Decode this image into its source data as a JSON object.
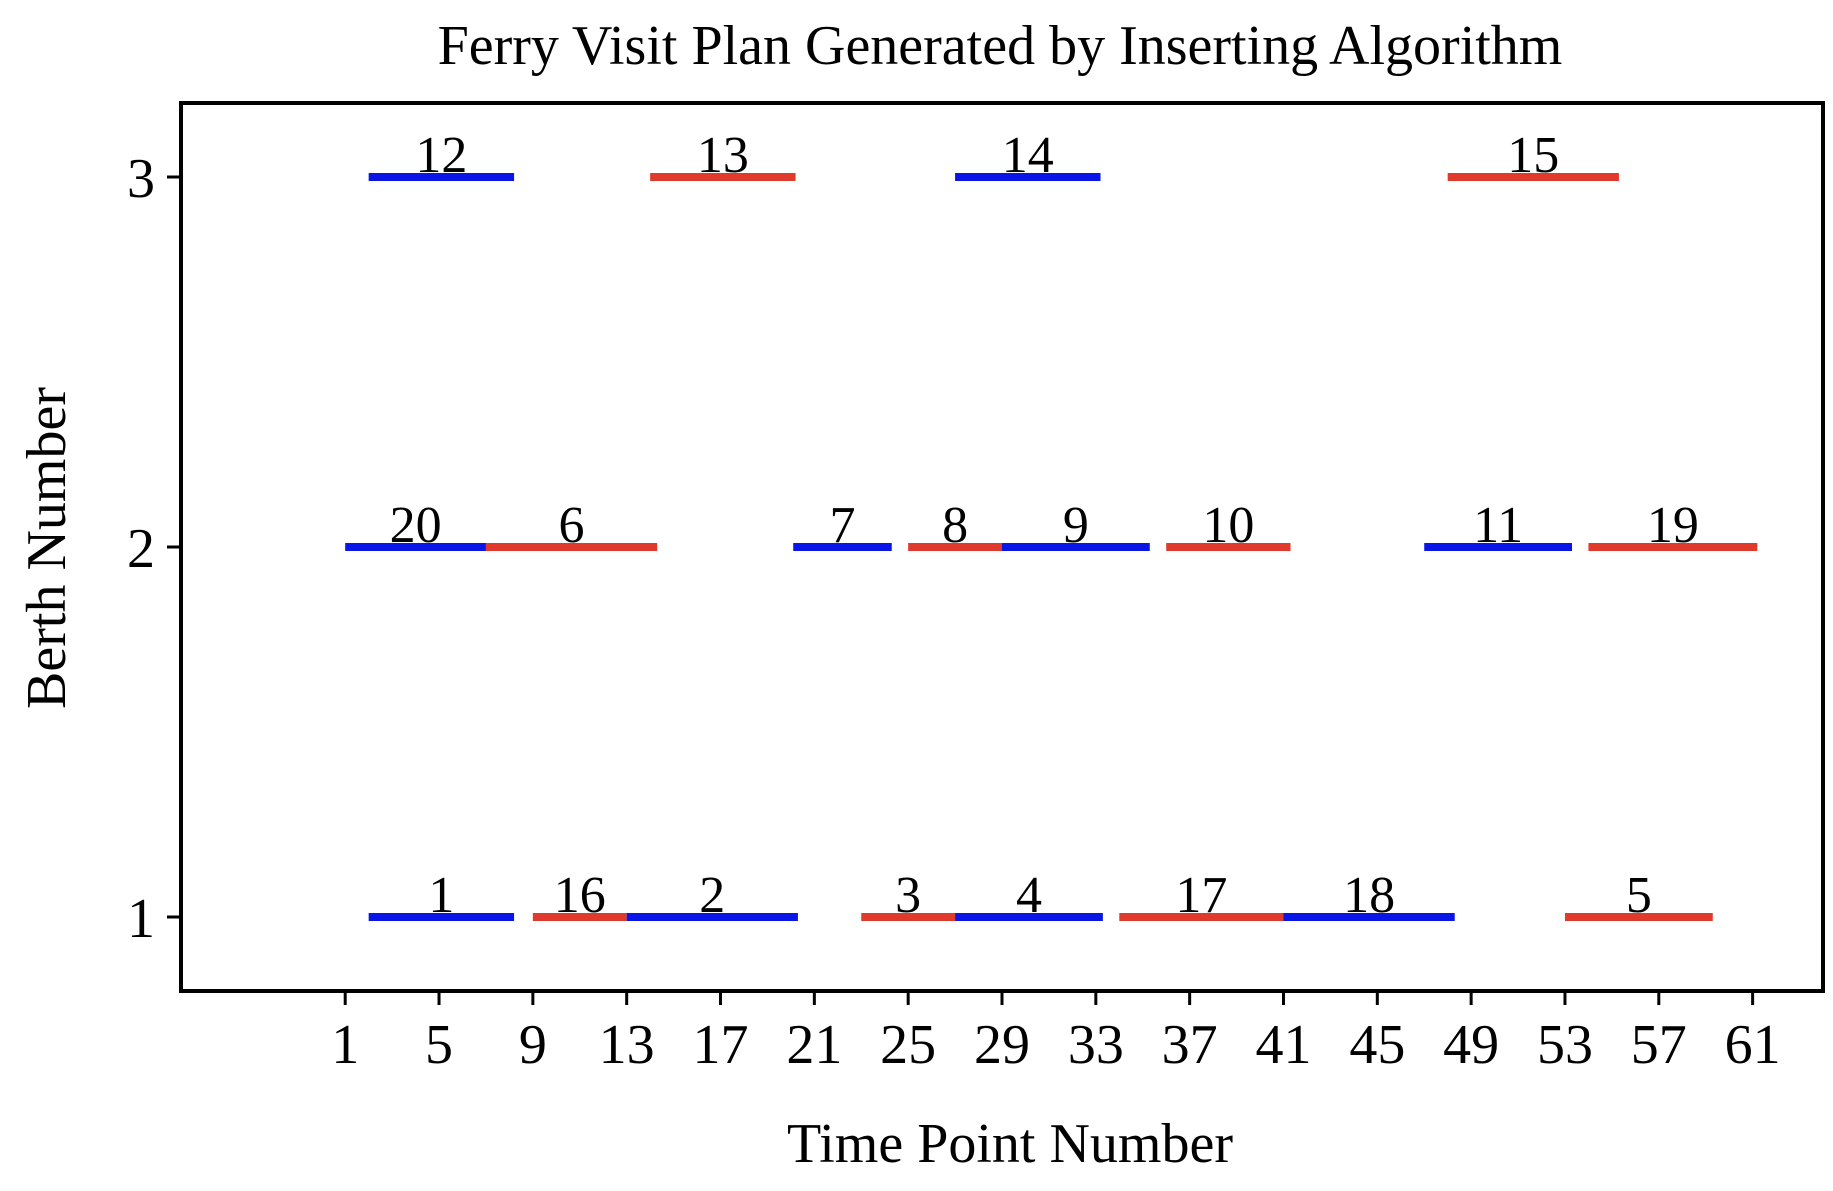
{
  "chart_data": {
    "type": "bar",
    "subtype": "horizontal-interval",
    "title": "Ferry Visit Plan Generated by Inserting Algorithm",
    "xlabel": "Time Point Number",
    "ylabel": "Berth Number",
    "xlim": [
      -6,
      64
    ],
    "ylim": [
      0.8,
      3.2
    ],
    "xticks": [
      1,
      5,
      9,
      13,
      17,
      21,
      25,
      29,
      33,
      37,
      41,
      45,
      49,
      53,
      57,
      61
    ],
    "yticks": [
      1,
      2,
      3
    ],
    "grid": false,
    "legend": "none",
    "colors": {
      "blue": "#0a16e6",
      "red": "#e03a2c"
    },
    "series": [
      {
        "id": "12",
        "berth": 3,
        "start": 2,
        "end": 8.2,
        "color": "blue"
      },
      {
        "id": "13",
        "berth": 3,
        "start": 14,
        "end": 20.2,
        "color": "red"
      },
      {
        "id": "14",
        "berth": 3,
        "start": 27,
        "end": 33.2,
        "color": "blue"
      },
      {
        "id": "15",
        "berth": 3,
        "start": 48,
        "end": 55.3,
        "color": "red"
      },
      {
        "id": "20",
        "berth": 2,
        "start": 1,
        "end": 7,
        "color": "blue"
      },
      {
        "id": "6",
        "berth": 2,
        "start": 7,
        "end": 14.3,
        "color": "red"
      },
      {
        "id": "7",
        "berth": 2,
        "start": 20.1,
        "end": 24.3,
        "color": "blue"
      },
      {
        "id": "8",
        "berth": 2,
        "start": 25,
        "end": 29,
        "color": "red"
      },
      {
        "id": "9",
        "berth": 2,
        "start": 29,
        "end": 35.3,
        "color": "blue"
      },
      {
        "id": "10",
        "berth": 2,
        "start": 36,
        "end": 41.3,
        "color": "red"
      },
      {
        "id": "11",
        "berth": 2,
        "start": 47,
        "end": 53.3,
        "color": "blue"
      },
      {
        "id": "19",
        "berth": 2,
        "start": 54,
        "end": 61.2,
        "color": "red"
      },
      {
        "id": "1",
        "berth": 1,
        "start": 2,
        "end": 8.2,
        "color": "blue"
      },
      {
        "id": "16",
        "berth": 1,
        "start": 9,
        "end": 13,
        "color": "red"
      },
      {
        "id": "2",
        "berth": 1,
        "start": 13,
        "end": 20.3,
        "color": "blue"
      },
      {
        "id": "3",
        "berth": 1,
        "start": 23,
        "end": 27,
        "color": "red"
      },
      {
        "id": "4",
        "berth": 1,
        "start": 27,
        "end": 33.3,
        "color": "blue"
      },
      {
        "id": "17",
        "berth": 1,
        "start": 34,
        "end": 41,
        "color": "red"
      },
      {
        "id": "18",
        "berth": 1,
        "start": 41,
        "end": 48.3,
        "color": "blue"
      },
      {
        "id": "5",
        "berth": 1,
        "start": 53,
        "end": 59.3,
        "color": "red"
      }
    ]
  }
}
